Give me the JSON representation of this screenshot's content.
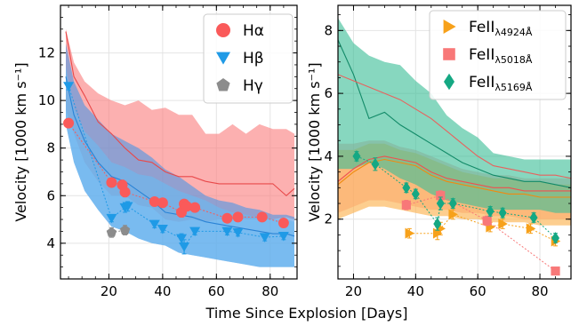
{
  "chart_data": [
    {
      "type": "line",
      "panel": "left",
      "xlabel": "Time Since Explosion [Days]",
      "ylabel": "Velocity [1000 km s⁻¹]",
      "xlim": [
        2,
        90
      ],
      "ylim": [
        2.5,
        14
      ],
      "xticks": [
        "20",
        "40",
        "60",
        "80"
      ],
      "yticks": [
        "4",
        "6",
        "8",
        "10",
        "12"
      ],
      "grid": true,
      "legend_position": "top-right",
      "legend": [
        {
          "label": "Hα",
          "marker": "circle",
          "color": "#fa5a5a"
        },
        {
          "label": "Hβ",
          "marker": "triangle-down",
          "color": "#1f9ae6"
        },
        {
          "label": "Hγ",
          "marker": "pentagon",
          "color": "#8c8c8c"
        }
      ],
      "bands": [
        {
          "color": "#fa8080",
          "x": [
            4,
            7,
            11,
            16,
            21,
            26,
            31,
            36,
            41,
            46,
            51,
            56,
            61,
            66,
            71,
            76,
            81,
            86,
            89
          ],
          "upper": [
            13.0,
            11.6,
            10.8,
            10.3,
            10.0,
            9.8,
            10.0,
            9.6,
            9.7,
            9.4,
            9.4,
            8.6,
            8.6,
            9.0,
            8.6,
            9.0,
            8.8,
            8.8,
            8.6
          ],
          "lower": [
            9.6,
            8.6,
            7.4,
            6.6,
            6.0,
            6.0,
            5.6,
            5.5,
            5.0,
            4.9,
            5.0,
            4.9,
            5.0,
            5.0,
            5.0,
            5.0,
            5.0,
            5.1,
            5.0
          ]
        },
        {
          "color": "#4f96e3",
          "x": [
            4,
            7,
            11,
            16,
            21,
            26,
            31,
            36,
            41,
            46,
            51,
            56,
            61,
            66,
            71,
            76,
            81,
            86,
            89
          ],
          "upper": [
            12.4,
            10.8,
            9.8,
            9.2,
            8.6,
            8.3,
            8.0,
            7.6,
            7.1,
            6.8,
            6.4,
            6.0,
            5.8,
            5.7,
            5.5,
            5.4,
            5.2,
            5.2,
            5.1
          ],
          "lower": [
            9.0,
            7.4,
            6.2,
            5.4,
            4.7,
            4.5,
            4.2,
            4.0,
            3.9,
            3.6,
            3.5,
            3.4,
            3.3,
            3.2,
            3.1,
            3.0,
            3.0,
            3.0,
            3.0
          ]
        },
        {
          "color": "#6bbaf0",
          "x": [
            4,
            7,
            11,
            16,
            21,
            26,
            31,
            36,
            41,
            46,
            51,
            56,
            61,
            66,
            71,
            76,
            81,
            86,
            89
          ],
          "upper": [
            11.4,
            9.7,
            8.7,
            8.1,
            7.4,
            7.2,
            6.9,
            6.8,
            6.5,
            6.2,
            6.0,
            5.8,
            5.5,
            5.3,
            5.2,
            5.1,
            5.0,
            5.0,
            4.9
          ],
          "lower": [
            9.0,
            7.4,
            6.2,
            5.4,
            4.7,
            4.5,
            4.2,
            4.0,
            3.9,
            3.6,
            3.5,
            3.4,
            3.3,
            3.2,
            3.1,
            3.0,
            3.0,
            3.0,
            3.0
          ]
        }
      ],
      "mean_lines": [
        {
          "color": "#e8494a",
          "x": [
            4,
            7,
            11,
            16,
            21,
            26,
            31,
            36,
            41,
            46,
            51,
            56,
            61,
            66,
            71,
            76,
            81,
            86,
            89
          ],
          "y": [
            12.9,
            11.0,
            10.2,
            9.1,
            8.6,
            8.0,
            7.5,
            7.4,
            7.0,
            6.8,
            6.8,
            6.6,
            6.5,
            6.5,
            6.5,
            6.5,
            6.5,
            6.0,
            6.3
          ]
        },
        {
          "color": "#2a83d6",
          "x": [
            4,
            7,
            11,
            16,
            21,
            26,
            31,
            36,
            41,
            46,
            51,
            56,
            61,
            66,
            71,
            76,
            81,
            86,
            89
          ],
          "y": [
            11.0,
            9.4,
            8.3,
            7.4,
            6.8,
            6.6,
            6.2,
            5.8,
            5.3,
            5.2,
            5.1,
            4.9,
            4.8,
            4.7,
            4.6,
            4.5,
            4.4,
            4.4,
            4.3
          ]
        }
      ],
      "series": [
        {
          "name": "Hα",
          "marker": "circle",
          "color": "#fa5a5a",
          "x": [
            5,
            21,
            25,
            26,
            37,
            40,
            47,
            48,
            49,
            52,
            64,
            68,
            77,
            85
          ],
          "y": [
            9.05,
            6.55,
            6.45,
            6.15,
            5.75,
            5.7,
            5.3,
            5.65,
            5.55,
            5.5,
            5.05,
            5.1,
            5.1,
            4.85
          ],
          "yerr": [
            0.15,
            0.15,
            0.2,
            0.2,
            0.15,
            0.15,
            0.2,
            0.15,
            0.15,
            0.15,
            0.15,
            0.15,
            0.15,
            0.15
          ]
        },
        {
          "name": "Hβ",
          "marker": "triangle-down",
          "color": "#1f9ae6",
          "x": [
            5,
            21,
            26,
            27,
            37,
            40,
            47,
            48,
            52,
            64,
            68,
            78,
            85
          ],
          "y": [
            10.6,
            5.05,
            5.5,
            5.55,
            4.8,
            4.6,
            4.2,
            3.85,
            4.5,
            4.5,
            4.45,
            4.25,
            4.3
          ],
          "yerr": [
            0.15,
            0.15,
            0.2,
            0.2,
            0.15,
            0.15,
            0.2,
            0.3,
            0.15,
            0.15,
            0.15,
            0.15,
            0.15
          ]
        },
        {
          "name": "Hγ",
          "marker": "pentagon",
          "color": "#8c8c8c",
          "x": [
            21,
            26
          ],
          "y": [
            4.45,
            4.55
          ],
          "yerr": [
            0.2,
            0.2
          ]
        }
      ]
    },
    {
      "type": "line",
      "panel": "right",
      "xlabel": "",
      "ylabel": "Velocity [1000 km s⁻¹]",
      "xlim": [
        15,
        90
      ],
      "ylim": [
        0.1,
        8.8
      ],
      "xticks": [
        "20",
        "40",
        "60",
        "80"
      ],
      "yticks": [
        "2",
        "4",
        "6",
        "8"
      ],
      "grid": true,
      "legend_position": "top-right",
      "legend": [
        {
          "label": "FeII",
          "sub": "λ4924Å",
          "marker": "triangle-right",
          "color": "#f7a11a"
        },
        {
          "label": "FeII",
          "sub": "λ5018Å",
          "marker": "square",
          "color": "#f87878"
        },
        {
          "label": "FeII",
          "sub": "λ5169Å",
          "marker": "diamond",
          "color": "#15a883"
        }
      ],
      "bands": [
        {
          "color": "#f8a5a5",
          "x": [
            15,
            20,
            25,
            30,
            35,
            40,
            45,
            50,
            55,
            60,
            65,
            70,
            75,
            80,
            85,
            90
          ],
          "upper": [
            4.4,
            4.4,
            4.5,
            4.5,
            4.3,
            4.2,
            4.0,
            3.8,
            3.6,
            3.5,
            3.4,
            3.4,
            3.3,
            3.3,
            3.3,
            3.3
          ],
          "lower": [
            2.2,
            2.4,
            2.6,
            2.6,
            2.5,
            2.4,
            2.3,
            2.3,
            2.2,
            2.2,
            2.1,
            2.1,
            2.0,
            2.0,
            2.0,
            2.0
          ]
        },
        {
          "color": "#fbb04a",
          "x": [
            15,
            20,
            25,
            30,
            35,
            40,
            45,
            50,
            55,
            60,
            65,
            70,
            75,
            80,
            85,
            90
          ],
          "upper": [
            4.2,
            4.2,
            4.4,
            4.4,
            4.2,
            4.1,
            3.9,
            3.7,
            3.5,
            3.4,
            3.3,
            3.3,
            3.2,
            3.2,
            3.1,
            3.1
          ],
          "lower": [
            2.0,
            2.2,
            2.4,
            2.4,
            2.3,
            2.2,
            2.1,
            2.1,
            2.0,
            2.0,
            1.9,
            1.9,
            1.9,
            1.8,
            1.8,
            1.8
          ]
        },
        {
          "color": "#3dbf98",
          "x": [
            15,
            20,
            25,
            30,
            35,
            40,
            45,
            50,
            55,
            60,
            65,
            70,
            75,
            80,
            85,
            90
          ],
          "upper": [
            8.4,
            7.6,
            7.2,
            7.0,
            6.9,
            6.4,
            6.0,
            5.3,
            4.9,
            4.6,
            4.1,
            4.0,
            3.9,
            3.9,
            3.9,
            3.9
          ],
          "lower": [
            3.6,
            3.6,
            3.8,
            3.6,
            3.3,
            3.1,
            2.8,
            2.6,
            2.5,
            2.4,
            2.3,
            2.3,
            2.3,
            2.3,
            2.2,
            2.2
          ]
        }
      ],
      "mean_lines": [
        {
          "color": "#f0504f",
          "x": [
            15,
            20,
            25,
            30,
            35,
            40,
            45,
            50,
            55,
            60,
            65,
            70,
            75,
            80,
            85,
            90
          ],
          "y": [
            3.2,
            3.6,
            3.9,
            4.0,
            3.9,
            3.8,
            3.5,
            3.3,
            3.2,
            3.1,
            3.0,
            3.0,
            2.9,
            2.9,
            2.9,
            2.9
          ]
        },
        {
          "color": "#f08a10",
          "x": [
            15,
            20,
            25,
            30,
            35,
            40,
            45,
            50,
            55,
            60,
            65,
            70,
            75,
            80,
            85,
            90
          ],
          "y": [
            3.1,
            3.5,
            3.8,
            3.9,
            3.8,
            3.7,
            3.4,
            3.2,
            3.1,
            3.0,
            2.9,
            2.8,
            2.8,
            2.7,
            2.7,
            2.7
          ]
        },
        {
          "color": "#128a68",
          "x": [
            15,
            20,
            25,
            30,
            35,
            40,
            45,
            50,
            55,
            60,
            65,
            70,
            75,
            80,
            85,
            90
          ],
          "y": [
            7.7,
            6.6,
            5.2,
            5.4,
            5.0,
            4.7,
            4.4,
            4.1,
            3.8,
            3.6,
            3.4,
            3.3,
            3.2,
            3.2,
            3.1,
            3.0
          ]
        },
        {
          "color": "#e8625e",
          "x": [
            15,
            20,
            25,
            30,
            35,
            40,
            45,
            50,
            55,
            60,
            65,
            70,
            75,
            80,
            85,
            90
          ],
          "y": [
            6.6,
            6.4,
            6.2,
            6.0,
            5.8,
            5.5,
            5.2,
            4.8,
            4.4,
            4.0,
            3.7,
            3.6,
            3.5,
            3.4,
            3.4,
            3.3
          ]
        }
      ],
      "series": [
        {
          "name": "FeIIλ4924Å",
          "marker": "triangle-right",
          "color": "#f7a11a",
          "x": [
            38,
            47,
            48,
            52,
            64,
            68,
            77,
            85
          ],
          "y": [
            1.55,
            1.55,
            1.7,
            2.15,
            1.75,
            1.85,
            1.7,
            1.3
          ],
          "yerr": [
            0.15,
            0.2,
            0.2,
            0.15,
            0.15,
            0.15,
            0.15,
            0.15
          ]
        },
        {
          "name": "FeIIλ5018Å",
          "marker": "square",
          "color": "#f87878",
          "x": [
            37,
            48,
            63,
            85
          ],
          "y": [
            2.45,
            2.75,
            1.95,
            0.35
          ],
          "yerr": [
            0.15,
            0.15,
            0.15,
            0.1
          ]
        },
        {
          "name": "FeIIλ5169Å",
          "marker": "diamond",
          "color": "#15a883",
          "x": [
            21,
            27,
            37,
            40,
            47,
            48,
            52,
            64,
            68,
            78,
            85
          ],
          "y": [
            4.0,
            3.75,
            3.0,
            2.8,
            1.85,
            2.5,
            2.5,
            2.25,
            2.2,
            2.05,
            1.4
          ],
          "yerr": [
            0.15,
            0.2,
            0.15,
            0.15,
            0.2,
            0.2,
            0.15,
            0.15,
            0.15,
            0.15,
            0.15
          ]
        }
      ]
    }
  ]
}
